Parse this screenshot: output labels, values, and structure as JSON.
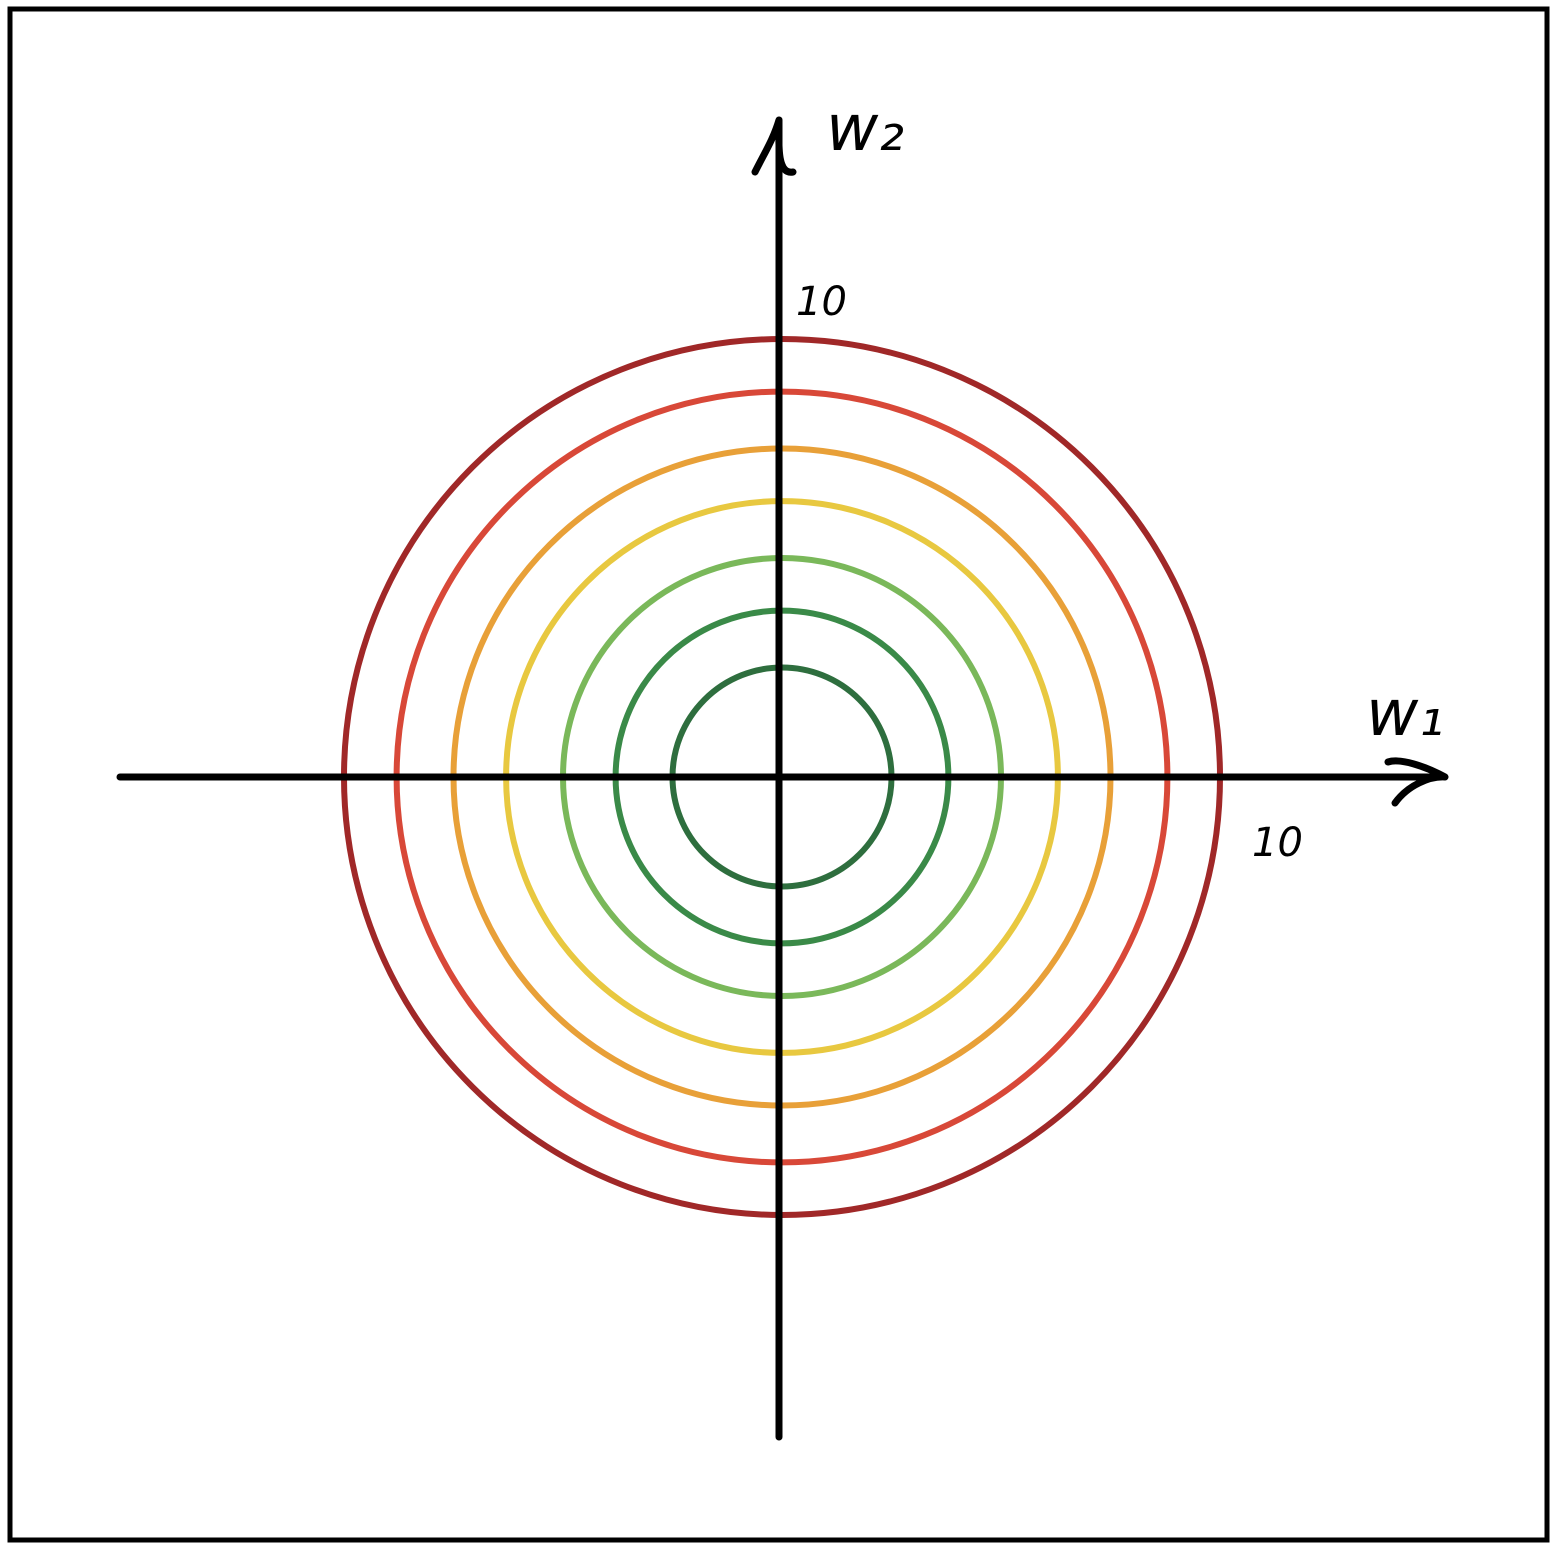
{
  "axes": {
    "x_label": "w₁",
    "y_label": "w₂",
    "x_tick_label": "10",
    "y_tick_label": "10",
    "color": "#000000"
  },
  "contours": {
    "radii": [
      2.5,
      3.8,
      5.0,
      6.3,
      7.5,
      8.8,
      10.0
    ],
    "colors": [
      "#2e6e3e",
      "#3a8a48",
      "#7ab85a",
      "#e8c840",
      "#e8a038",
      "#d84838",
      "#a02828"
    ]
  },
  "frame": {
    "color": "#000000"
  }
}
